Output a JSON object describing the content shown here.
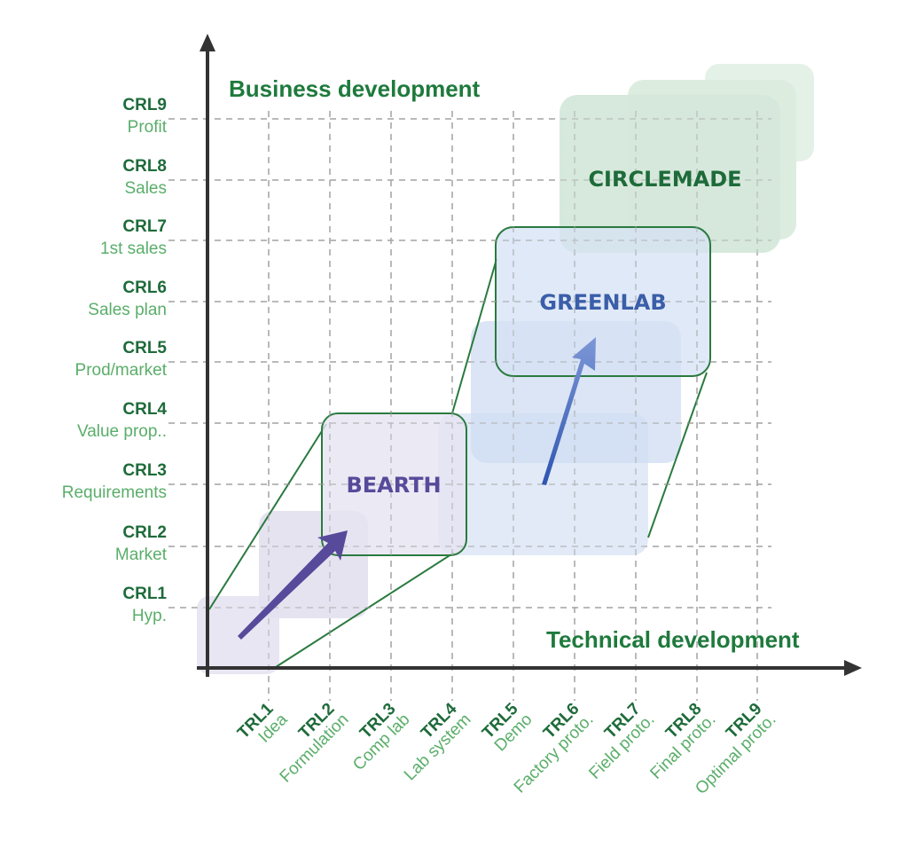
{
  "y_axis": {
    "title": "Business development",
    "levels": [
      {
        "code": "CRL1",
        "name": "Hyp."
      },
      {
        "code": "CRL2",
        "name": "Market"
      },
      {
        "code": "CRL3",
        "name": "Requirements"
      },
      {
        "code": "CRL4",
        "name": "Value prop.."
      },
      {
        "code": "CRL5",
        "name": "Prod/market"
      },
      {
        "code": "CRL6",
        "name": "Sales plan"
      },
      {
        "code": "CRL7",
        "name": "1st sales"
      },
      {
        "code": "CRL8",
        "name": "Sales"
      },
      {
        "code": "CRL9",
        "name": "Profit"
      }
    ]
  },
  "x_axis": {
    "title": "Technical development",
    "levels": [
      {
        "code": "TRL1",
        "name": "Idea"
      },
      {
        "code": "TRL2",
        "name": "Formulation"
      },
      {
        "code": "TRL3",
        "name": "Comp lab"
      },
      {
        "code": "TRL4",
        "name": "Lab system"
      },
      {
        "code": "TRL5",
        "name": "Demo"
      },
      {
        "code": "TRL6",
        "name": "Factory proto."
      },
      {
        "code": "TRL7",
        "name": "Field proto."
      },
      {
        "code": "TRL8",
        "name": "Final proto."
      },
      {
        "code": "TRL9",
        "name": "Optimal proto."
      }
    ]
  },
  "stages": [
    {
      "name": "BEARTH",
      "color": "#574a9a",
      "fill": "#e6e3f1"
    },
    {
      "name": "GREENLAB",
      "color": "#3a5ea8",
      "fill": "#dbe5f5"
    },
    {
      "name": "CIRCLEMADE",
      "color": "#1e6b3a",
      "fill": "#d4e8da"
    }
  ],
  "colors": {
    "axis": "#333333",
    "outline": "#2a7a3f",
    "purple_arrow": "#574a9a",
    "blue_arrow": "#5b7fc8"
  }
}
